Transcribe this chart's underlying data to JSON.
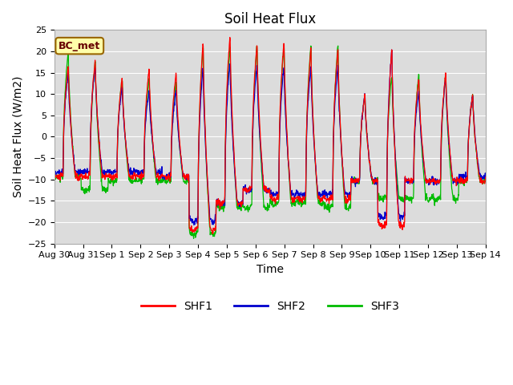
{
  "title": "Soil Heat Flux",
  "xlabel": "Time",
  "ylabel": "Soil Heat Flux (W/m2)",
  "ylim": [
    -25,
    25
  ],
  "yticks": [
    -25,
    -20,
    -15,
    -10,
    -5,
    0,
    5,
    10,
    15,
    20,
    25
  ],
  "xtick_labels": [
    "Aug 30",
    "Aug 31",
    "Sep 1",
    "Sep 2",
    "Sep 3",
    "Sep 4",
    "Sep 5",
    "Sep 6",
    "Sep 7",
    "Sep 8",
    "Sep 9",
    "Sep 10",
    "Sep 11",
    "Sep 12",
    "Sep 13",
    "Sep 14"
  ],
  "legend_labels": [
    "SHF1",
    "SHF2",
    "SHF3"
  ],
  "legend_colors": [
    "#ff0000",
    "#0000cd",
    "#00bb00"
  ],
  "annotation_text": "BC_met",
  "annotation_box_color": "#ffffaa",
  "annotation_box_edge": "#996600",
  "line_colors": [
    "#ff0000",
    "#0000cd",
    "#00bb00"
  ],
  "background_color": "#dcdcdc",
  "title_fontsize": 12,
  "axis_fontsize": 10,
  "tick_fontsize": 8,
  "legend_fontsize": 10,
  "shf1_day_peaks": [
    17,
    18,
    14,
    16,
    15,
    23,
    24,
    22,
    23,
    21,
    21,
    10,
    21,
    14,
    15,
    10
  ],
  "shf1_night_troughs": [
    -9,
    -9,
    -9,
    -9,
    -9,
    -21,
    -15,
    -12,
    -14,
    -14,
    -14,
    -10,
    -20,
    -10,
    -10,
    -10
  ],
  "shf2_day_peaks": [
    15,
    17,
    12,
    11,
    11,
    17,
    18,
    17,
    17,
    17,
    17,
    10,
    21,
    11,
    14,
    10
  ],
  "shf2_night_troughs": [
    -8,
    -8,
    -8,
    -8,
    -9,
    -19,
    -15,
    -12,
    -13,
    -13,
    -13,
    -10,
    -18,
    -10,
    -10,
    -9
  ],
  "shf3_day_peaks": [
    20,
    18,
    14,
    14,
    13,
    22,
    22,
    22,
    22,
    22,
    22,
    10,
    15,
    15,
    15,
    10
  ],
  "shf3_night_troughs": [
    -9,
    -12,
    -10,
    -10,
    -10,
    -22,
    -16,
    -16,
    -15,
    -15,
    -16,
    -10,
    -14,
    -14,
    -14,
    -10
  ],
  "n_per_day": 96
}
